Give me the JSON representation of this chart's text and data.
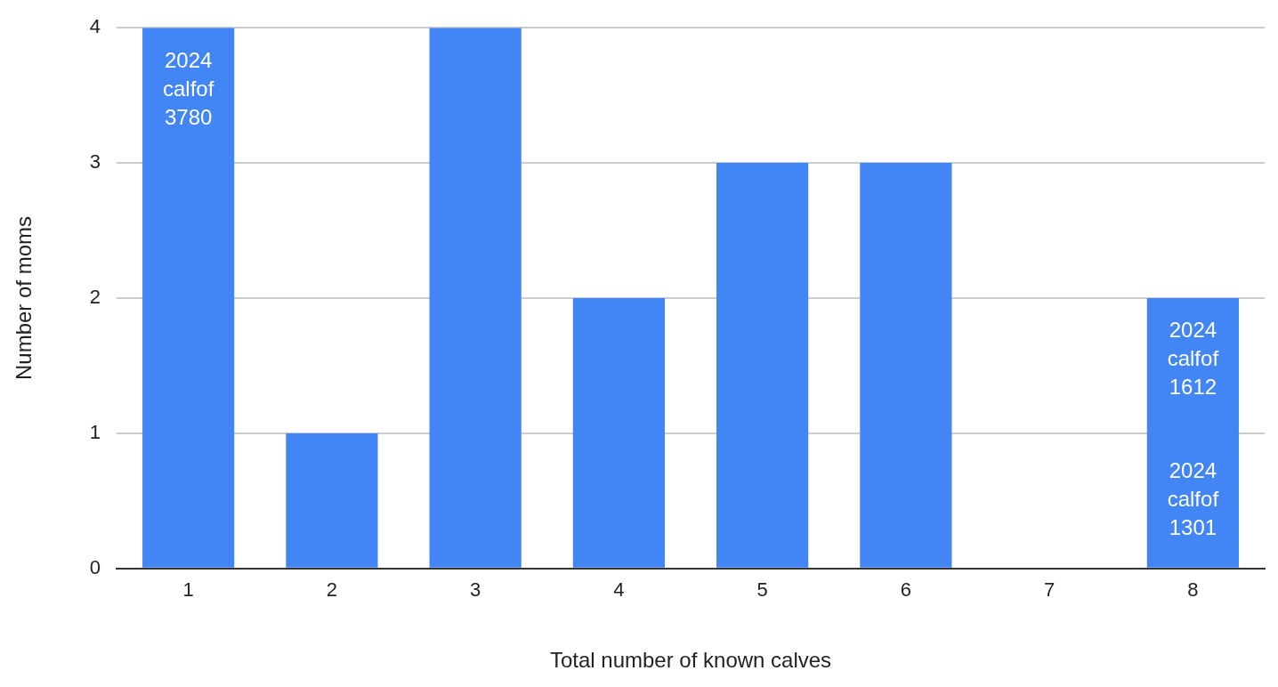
{
  "chart_data": {
    "type": "bar",
    "xlabel": "Total number of known calves",
    "ylabel": "Number of moms",
    "categories": [
      "1",
      "2",
      "3",
      "4",
      "5",
      "6",
      "7",
      "8"
    ],
    "values": [
      4,
      1,
      4,
      2,
      3,
      3,
      0,
      2
    ],
    "color": "#4285f4",
    "ylim": [
      0,
      4
    ],
    "yticks": [
      0,
      1,
      2,
      3,
      4
    ],
    "grid": "y",
    "legend": false,
    "annotations": [
      "2024\ncalfof\n3780",
      "2024\ncalfof\n1612",
      "2024\ncalfof\n1301"
    ]
  }
}
